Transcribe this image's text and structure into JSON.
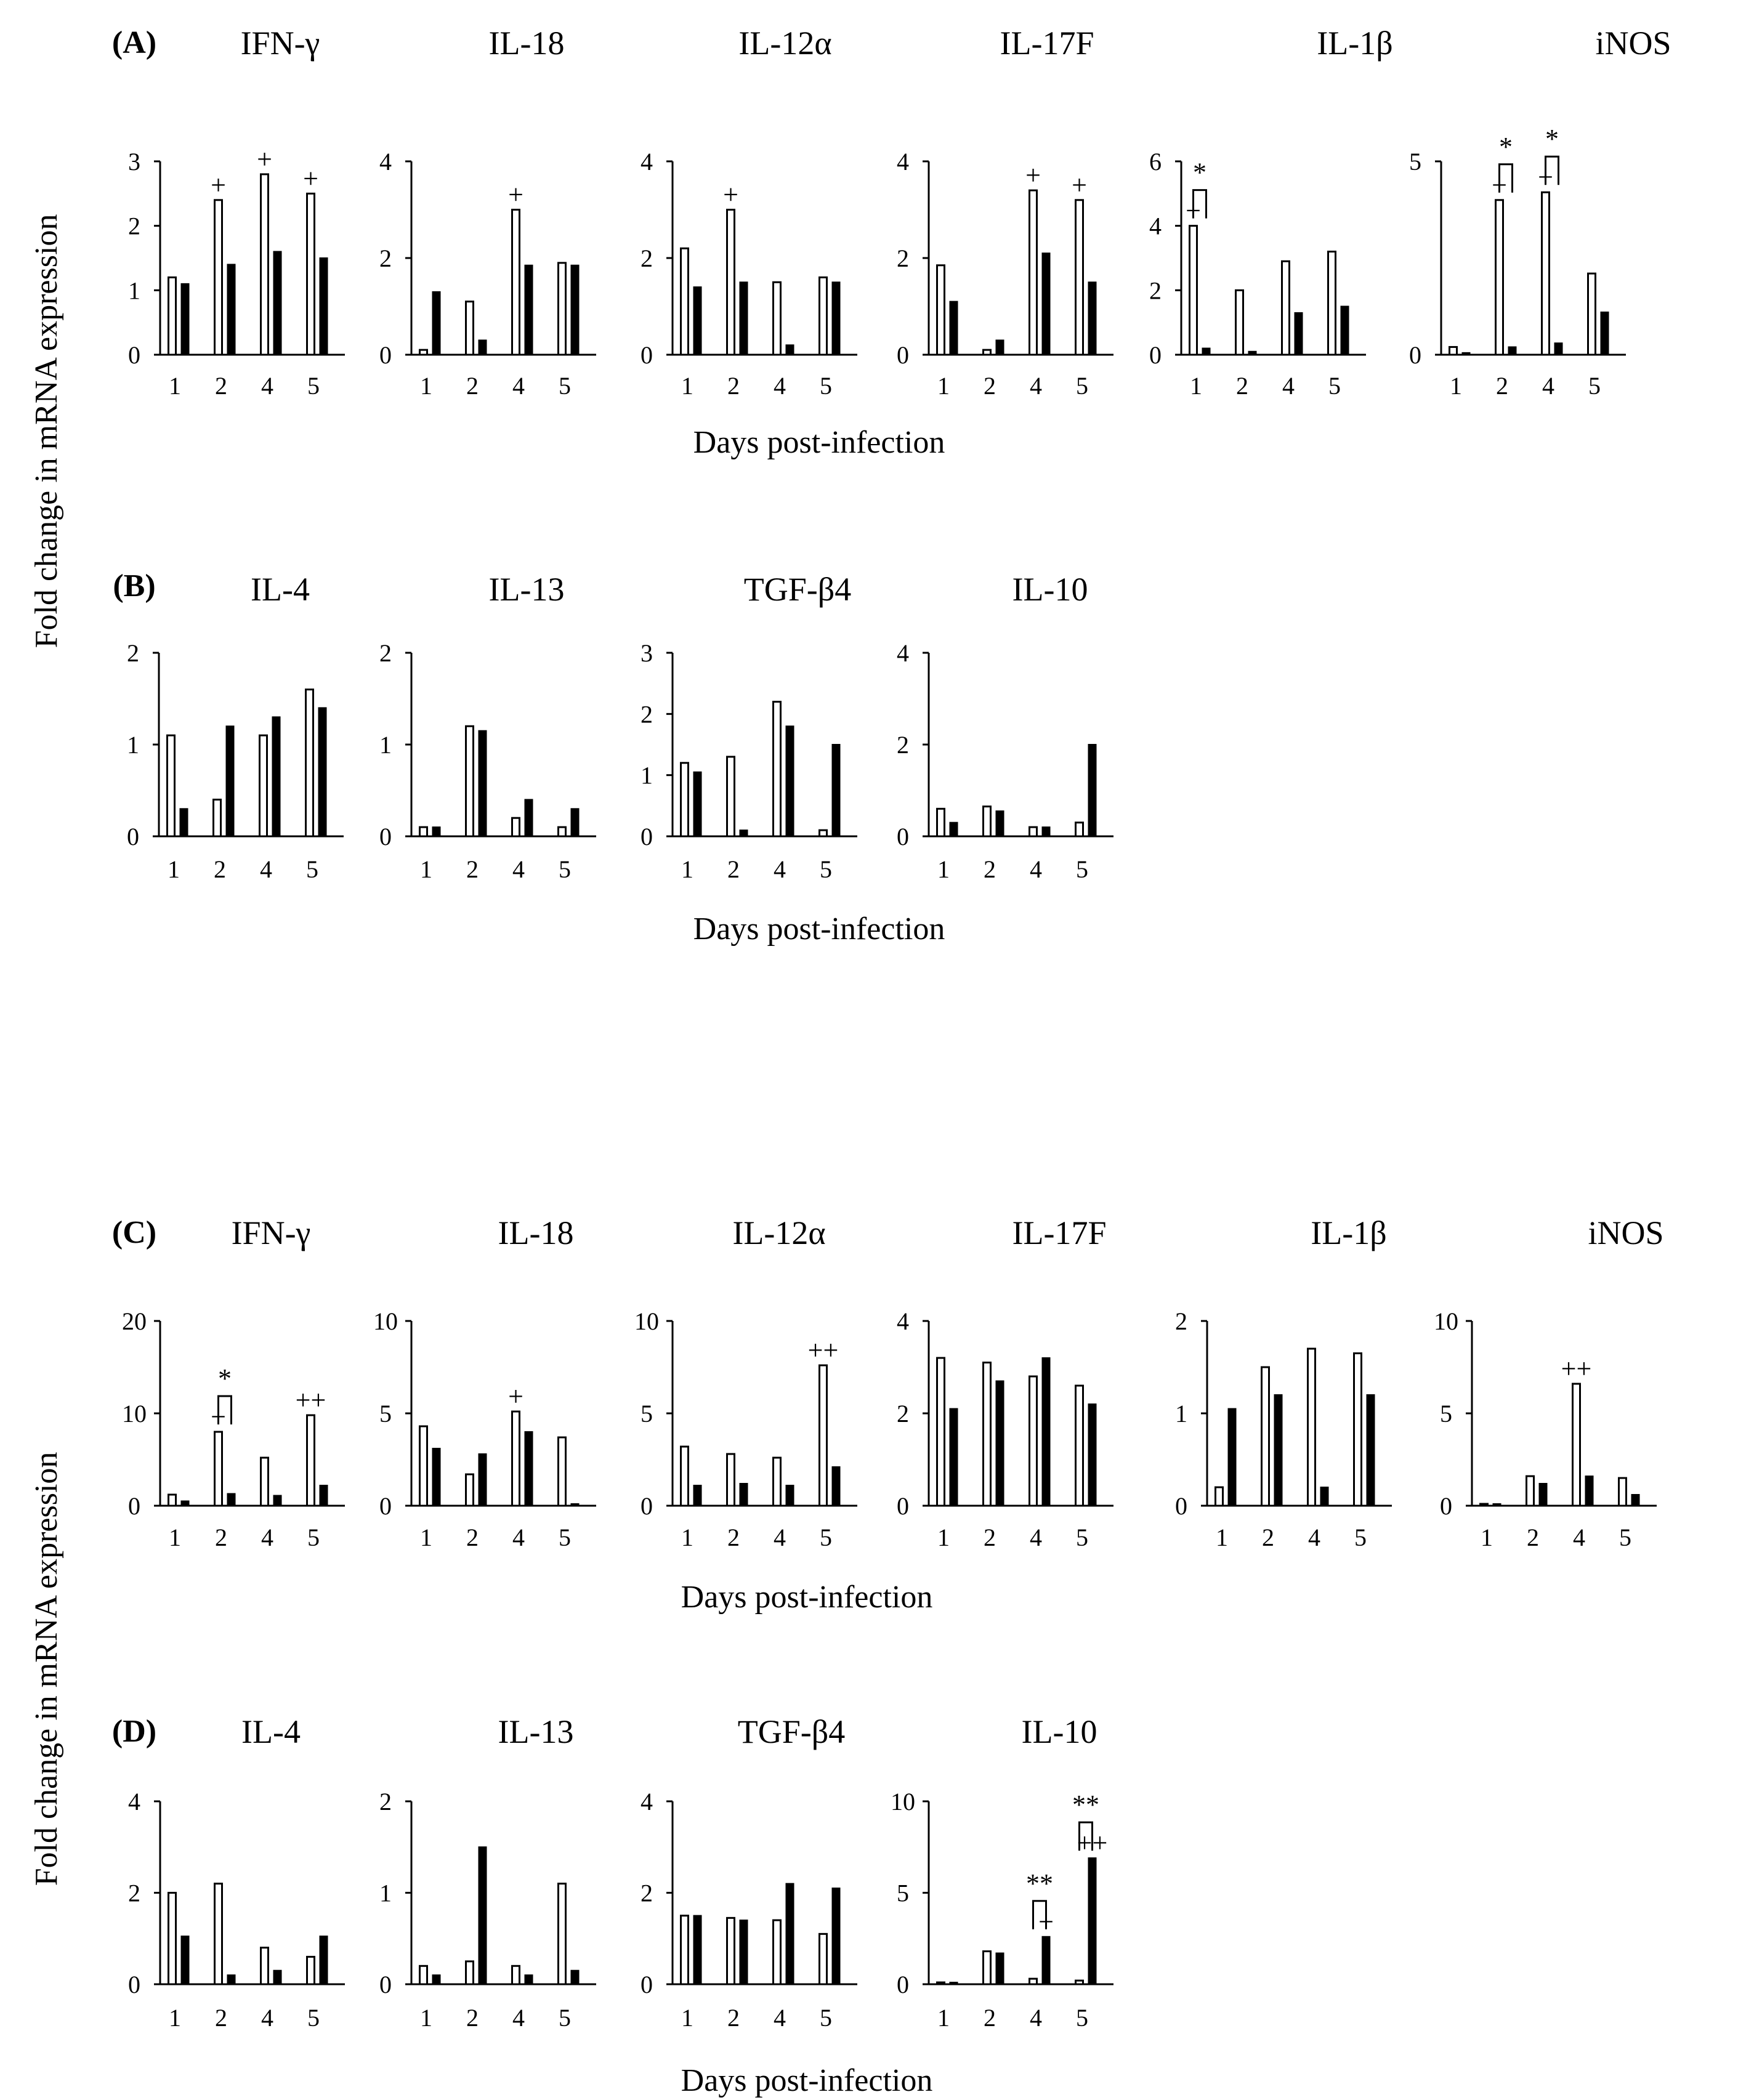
{
  "figure": {
    "y_axis_label": "Fold change in mRNA expression",
    "x_axis_label": "Days post-infection",
    "categories": [
      "1",
      "2",
      "4",
      "5"
    ]
  },
  "chart_data": [
    {
      "type": "bar",
      "section": "A",
      "panel_label": "(A)",
      "title": "IFN-γ",
      "categories": [
        "1",
        "2",
        "4",
        "5"
      ],
      "ylim": [
        0,
        3
      ],
      "yticks": [
        0,
        1,
        2,
        3
      ],
      "series": [
        {
          "name": "open",
          "values": [
            1.2,
            2.4,
            2.8,
            2.5
          ]
        },
        {
          "name": "filled",
          "values": [
            1.1,
            1.4,
            1.6,
            1.5
          ]
        }
      ],
      "annotations": [
        {
          "text": "+",
          "category": 1,
          "bar": 0
        },
        {
          "text": "+",
          "category": 2,
          "bar": 0
        },
        {
          "text": "+",
          "category": 3,
          "bar": 0
        }
      ]
    },
    {
      "type": "bar",
      "section": "A",
      "title": "IL-18",
      "categories": [
        "1",
        "2",
        "4",
        "5"
      ],
      "ylim": [
        0,
        4
      ],
      "yticks": [
        0,
        2,
        4
      ],
      "series": [
        {
          "name": "open",
          "values": [
            0.1,
            1.1,
            3.0,
            1.9
          ]
        },
        {
          "name": "filled",
          "values": [
            1.3,
            0.3,
            1.85,
            1.85
          ]
        }
      ],
      "annotations": [
        {
          "text": "+",
          "category": 2,
          "bar": 0
        }
      ]
    },
    {
      "type": "bar",
      "section": "A",
      "title": "IL-12α",
      "categories": [
        "1",
        "2",
        "4",
        "5"
      ],
      "ylim": [
        0,
        4
      ],
      "yticks": [
        0,
        2,
        4
      ],
      "series": [
        {
          "name": "open",
          "values": [
            2.2,
            3.0,
            1.5,
            1.6
          ]
        },
        {
          "name": "filled",
          "values": [
            1.4,
            1.5,
            0.2,
            1.5
          ]
        }
      ],
      "annotations": [
        {
          "text": "+",
          "category": 1,
          "bar": 0
        }
      ]
    },
    {
      "type": "bar",
      "section": "A",
      "title": "IL-17F",
      "categories": [
        "1",
        "2",
        "4",
        "5"
      ],
      "ylim": [
        0,
        4
      ],
      "yticks": [
        0,
        2,
        4
      ],
      "series": [
        {
          "name": "open",
          "values": [
            1.85,
            0.1,
            3.4,
            3.2
          ]
        },
        {
          "name": "filled",
          "values": [
            1.1,
            0.3,
            2.1,
            1.5
          ]
        }
      ],
      "annotations": [
        {
          "text": "+",
          "category": 2,
          "bar": 0
        },
        {
          "text": "+",
          "category": 3,
          "bar": 0
        }
      ]
    },
    {
      "type": "bar",
      "section": "A",
      "title": "IL-1β",
      "categories": [
        "1",
        "2",
        "4",
        "5"
      ],
      "ylim": [
        0,
        6
      ],
      "yticks": [
        0,
        2,
        4,
        6
      ],
      "series": [
        {
          "name": "open",
          "values": [
            4.0,
            2.0,
            2.9,
            3.2
          ]
        },
        {
          "name": "filled",
          "values": [
            0.2,
            0.1,
            1.3,
            1.5
          ]
        }
      ],
      "annotations": [
        {
          "text": "+",
          "category": 0,
          "bar": 0
        }
      ],
      "brackets": [
        {
          "text": "*",
          "category": 0
        }
      ]
    },
    {
      "type": "bar",
      "section": "A",
      "title": "iNOS",
      "categories": [
        "1",
        "2",
        "4",
        "5"
      ],
      "ylim": [
        0,
        5
      ],
      "yticks": [
        0,
        5
      ],
      "series": [
        {
          "name": "open",
          "values": [
            0.2,
            4.0,
            4.2,
            2.1
          ]
        },
        {
          "name": "filled",
          "values": [
            0.05,
            0.2,
            0.3,
            1.1
          ]
        }
      ],
      "annotations": [
        {
          "text": "+",
          "category": 1,
          "bar": 0
        },
        {
          "text": "+",
          "category": 2,
          "bar": 0
        }
      ],
      "brackets": [
        {
          "text": "*",
          "category": 1
        },
        {
          "text": "*",
          "category": 2
        }
      ]
    },
    {
      "type": "bar",
      "section": "B",
      "panel_label": "(B)",
      "title": "IL-4",
      "categories": [
        "1",
        "2",
        "4",
        "5"
      ],
      "ylim": [
        0,
        2
      ],
      "yticks": [
        0,
        1,
        2
      ],
      "series": [
        {
          "name": "open",
          "values": [
            1.1,
            0.4,
            1.1,
            1.6
          ]
        },
        {
          "name": "filled",
          "values": [
            0.3,
            1.2,
            1.3,
            1.4
          ]
        }
      ]
    },
    {
      "type": "bar",
      "section": "B",
      "title": "IL-13",
      "categories": [
        "1",
        "2",
        "4",
        "5"
      ],
      "ylim": [
        0,
        2
      ],
      "yticks": [
        0,
        1,
        2
      ],
      "series": [
        {
          "name": "open",
          "values": [
            0.1,
            1.2,
            0.2,
            0.1
          ]
        },
        {
          "name": "filled",
          "values": [
            0.1,
            1.15,
            0.4,
            0.3
          ]
        }
      ]
    },
    {
      "type": "bar",
      "section": "B",
      "title": "TGF-β4",
      "categories": [
        "1",
        "2",
        "4",
        "5"
      ],
      "ylim": [
        0,
        3
      ],
      "yticks": [
        0,
        1,
        2,
        3
      ],
      "series": [
        {
          "name": "open",
          "values": [
            1.2,
            1.3,
            2.2,
            0.1
          ]
        },
        {
          "name": "filled",
          "values": [
            1.05,
            0.1,
            1.8,
            1.5
          ]
        }
      ]
    },
    {
      "type": "bar",
      "section": "B",
      "title": "IL-10",
      "categories": [
        "1",
        "2",
        "4",
        "5"
      ],
      "ylim": [
        0,
        4
      ],
      "yticks": [
        0,
        2,
        4
      ],
      "series": [
        {
          "name": "open",
          "values": [
            0.6,
            0.65,
            0.2,
            0.3
          ]
        },
        {
          "name": "filled",
          "values": [
            0.3,
            0.55,
            0.2,
            2.0
          ]
        }
      ]
    },
    {
      "type": "bar",
      "section": "C",
      "panel_label": "(C)",
      "title": "IFN-γ",
      "categories": [
        "1",
        "2",
        "4",
        "5"
      ],
      "ylim": [
        0,
        20
      ],
      "yticks": [
        0,
        10,
        20
      ],
      "series": [
        {
          "name": "open",
          "values": [
            1.2,
            8.0,
            5.2,
            9.8
          ]
        },
        {
          "name": "filled",
          "values": [
            0.5,
            1.3,
            1.1,
            2.2
          ]
        }
      ],
      "annotations": [
        {
          "text": "+",
          "category": 1,
          "bar": 0
        },
        {
          "text": "++",
          "category": 3,
          "bar": 0
        }
      ],
      "brackets": [
        {
          "text": "*",
          "category": 1
        }
      ]
    },
    {
      "type": "bar",
      "section": "C",
      "title": "IL-18",
      "categories": [
        "1",
        "2",
        "4",
        "5"
      ],
      "ylim": [
        0,
        10
      ],
      "yticks": [
        0,
        5,
        10
      ],
      "series": [
        {
          "name": "open",
          "values": [
            4.3,
            1.7,
            5.1,
            3.7
          ]
        },
        {
          "name": "filled",
          "values": [
            3.1,
            2.8,
            4.0,
            0.1
          ]
        }
      ],
      "annotations": [
        {
          "text": "+",
          "category": 2,
          "bar": 0
        }
      ]
    },
    {
      "type": "bar",
      "section": "C",
      "title": "IL-12α",
      "categories": [
        "1",
        "2",
        "4",
        "5"
      ],
      "ylim": [
        0,
        10
      ],
      "yticks": [
        0,
        5,
        10
      ],
      "series": [
        {
          "name": "open",
          "values": [
            3.2,
            2.8,
            2.6,
            7.6
          ]
        },
        {
          "name": "filled",
          "values": [
            1.1,
            1.2,
            1.1,
            2.1
          ]
        }
      ],
      "annotations": [
        {
          "text": "++",
          "category": 3,
          "bar": 0
        }
      ]
    },
    {
      "type": "bar",
      "section": "C",
      "title": "IL-17F",
      "categories": [
        "1",
        "2",
        "4",
        "5"
      ],
      "ylim": [
        0,
        4
      ],
      "yticks": [
        0,
        2,
        4
      ],
      "series": [
        {
          "name": "open",
          "values": [
            3.2,
            3.1,
            2.8,
            2.6
          ]
        },
        {
          "name": "filled",
          "values": [
            2.1,
            2.7,
            3.2,
            2.2
          ]
        }
      ]
    },
    {
      "type": "bar",
      "section": "C",
      "title": "IL-1β",
      "categories": [
        "1",
        "2",
        "4",
        "5"
      ],
      "ylim": [
        0,
        2
      ],
      "yticks": [
        0,
        1,
        2
      ],
      "series": [
        {
          "name": "open",
          "values": [
            0.2,
            1.5,
            1.7,
            1.65
          ]
        },
        {
          "name": "filled",
          "values": [
            1.05,
            1.2,
            0.2,
            1.2
          ]
        }
      ]
    },
    {
      "type": "bar",
      "section": "C",
      "title": "iNOS",
      "categories": [
        "1",
        "2",
        "4",
        "5"
      ],
      "ylim": [
        0,
        10
      ],
      "yticks": [
        0,
        5,
        10
      ],
      "series": [
        {
          "name": "open",
          "values": [
            0.1,
            1.6,
            6.6,
            1.5
          ]
        },
        {
          "name": "filled",
          "values": [
            0.1,
            1.2,
            1.6,
            0.6
          ]
        }
      ],
      "annotations": [
        {
          "text": "++",
          "category": 2,
          "bar": 0
        }
      ]
    },
    {
      "type": "bar",
      "section": "D",
      "panel_label": "(D)",
      "title": "IL-4",
      "categories": [
        "1",
        "2",
        "4",
        "5"
      ],
      "ylim": [
        0,
        4
      ],
      "yticks": [
        0,
        2,
        4
      ],
      "series": [
        {
          "name": "open",
          "values": [
            2.0,
            2.2,
            0.8,
            0.6
          ]
        },
        {
          "name": "filled",
          "values": [
            1.05,
            0.2,
            0.3,
            1.05
          ]
        }
      ]
    },
    {
      "type": "bar",
      "section": "D",
      "title": "IL-13",
      "categories": [
        "1",
        "2",
        "4",
        "5"
      ],
      "ylim": [
        0,
        2
      ],
      "yticks": [
        0,
        1,
        2
      ],
      "series": [
        {
          "name": "open",
          "values": [
            0.2,
            0.25,
            0.2,
            1.1
          ]
        },
        {
          "name": "filled",
          "values": [
            0.1,
            1.5,
            0.1,
            0.15
          ]
        }
      ]
    },
    {
      "type": "bar",
      "section": "D",
      "title": "TGF-β4",
      "categories": [
        "1",
        "2",
        "4",
        "5"
      ],
      "ylim": [
        0,
        4
      ],
      "yticks": [
        0,
        2,
        4
      ],
      "series": [
        {
          "name": "open",
          "values": [
            1.5,
            1.45,
            1.4,
            1.1
          ]
        },
        {
          "name": "filled",
          "values": [
            1.5,
            1.4,
            2.2,
            2.1
          ]
        }
      ]
    },
    {
      "type": "bar",
      "section": "D",
      "title": "IL-10",
      "categories": [
        "1",
        "2",
        "4",
        "5"
      ],
      "ylim": [
        0,
        10
      ],
      "yticks": [
        0,
        5,
        10
      ],
      "series": [
        {
          "name": "open",
          "values": [
            0.1,
            1.8,
            0.3,
            0.2
          ]
        },
        {
          "name": "filled",
          "values": [
            0.1,
            1.7,
            2.6,
            6.9
          ]
        }
      ],
      "annotations": [
        {
          "text": "+",
          "category": 2,
          "bar": 1
        },
        {
          "text": "++",
          "category": 3,
          "bar": 1
        }
      ],
      "brackets": [
        {
          "text": "**",
          "category": 2
        },
        {
          "text": "**",
          "category": 3
        }
      ]
    }
  ]
}
